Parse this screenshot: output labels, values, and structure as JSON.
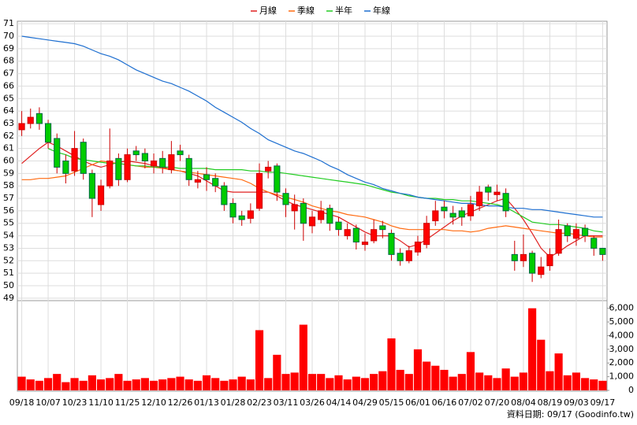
{
  "chart_data": {
    "type": "candlestick",
    "legend": "top",
    "grid": true,
    "up_color": "#ff0000",
    "down_color": "#00cc00",
    "volume_color": "#ff0000",
    "source": "資料日期: 09/17 (Goodinfo.tw)",
    "xlim": [
      -0.5,
      66.5
    ],
    "xticks": [
      {
        "value": 0,
        "label": "09/18"
      },
      {
        "value": 3,
        "label": "10/07"
      },
      {
        "value": 6,
        "label": "10/23"
      },
      {
        "value": 9,
        "label": "11/10"
      },
      {
        "value": 12,
        "label": "11/25"
      },
      {
        "value": 15,
        "label": "12/10"
      },
      {
        "value": 18,
        "label": "12/26"
      },
      {
        "value": 21,
        "label": "01/13"
      },
      {
        "value": 24,
        "label": "01/28"
      },
      {
        "value": 27,
        "label": "02/23"
      },
      {
        "value": 30,
        "label": "03/11"
      },
      {
        "value": 33,
        "label": "03/26"
      },
      {
        "value": 36,
        "label": "04/14"
      },
      {
        "value": 39,
        "label": "04/29"
      },
      {
        "value": 42,
        "label": "05/15"
      },
      {
        "value": 45,
        "label": "06/01"
      },
      {
        "value": 48,
        "label": "06/16"
      },
      {
        "value": 51,
        "label": "07/02"
      },
      {
        "value": 54,
        "label": "07/20"
      },
      {
        "value": 57,
        "label": "08/04"
      },
      {
        "value": 60,
        "label": "08/19"
      },
      {
        "value": 63,
        "label": "09/03"
      },
      {
        "value": 66,
        "label": "09/17"
      }
    ],
    "ylim": [
      48.8,
      71.2
    ],
    "yticks": [
      49,
      50,
      51,
      52,
      53,
      54,
      55,
      56,
      57,
      58,
      59,
      60,
      61,
      62,
      63,
      64,
      65,
      66,
      67,
      68,
      69,
      70,
      71
    ],
    "y2lim": [
      0,
      6500
    ],
    "y2ticks": [
      0,
      {
        "value": 1000,
        "label": "1,000"
      },
      {
        "value": 2000,
        "label": "2,000"
      },
      {
        "value": 3000,
        "label": "3,000"
      },
      {
        "value": 4000,
        "label": "4,000"
      },
      {
        "value": 5000,
        "label": "5,000"
      },
      {
        "value": 6000,
        "label": "6,000"
      }
    ],
    "open": [
      62.5,
      63,
      63.8,
      63,
      61.8,
      60,
      59.2,
      61.5,
      59,
      56.5,
      58,
      60.2,
      58.5,
      60.8,
      60.6,
      59.6,
      60.2,
      59.3,
      60.8,
      60.2,
      58.3,
      58.9,
      58.6,
      58,
      56.6,
      55.6,
      55.4,
      56.2,
      59.2,
      59.6,
      57.4,
      56,
      56.6,
      54.8,
      55.3,
      56.2,
      55.1,
      54,
      54.6,
      53.3,
      53.6,
      54.8,
      54.2,
      52.6,
      52,
      52.7,
      53.3,
      55.2,
      56.3,
      55.8,
      56,
      55.6,
      56.4,
      57.9,
      57.3,
      57.4,
      52.5,
      52,
      52.6,
      50.9,
      51.6,
      52.6,
      54.8,
      53.8,
      54.6,
      53.8,
      53
    ],
    "high": [
      64,
      64.2,
      64.3,
      63.3,
      62.2,
      60.5,
      62.4,
      61.8,
      59.3,
      58.5,
      62.6,
      60.6,
      61,
      61.2,
      61,
      60.6,
      60.8,
      61.6,
      61.3,
      60.5,
      59.2,
      59.5,
      59,
      58.3,
      57,
      56,
      56.6,
      59.8,
      60,
      59.8,
      57.8,
      57.3,
      57,
      56,
      56.8,
      56.5,
      55.5,
      55,
      54.9,
      54.2,
      55.3,
      55.2,
      54.5,
      53,
      53.2,
      54,
      55.6,
      56.8,
      56.8,
      56.4,
      56.3,
      57.2,
      58,
      58.1,
      58.1,
      57.8,
      53.6,
      54.1,
      52.8,
      52.3,
      53,
      55.3,
      55,
      55,
      54.9,
      54,
      53
    ],
    "low": [
      62,
      62.6,
      62.5,
      61,
      59,
      58.2,
      58.8,
      58.5,
      55.5,
      56,
      57.8,
      58,
      58.3,
      60,
      59.4,
      59,
      59,
      59,
      60,
      58,
      57.8,
      57.6,
      57.5,
      56,
      55,
      54.8,
      55,
      56,
      58.6,
      56.8,
      55.5,
      54.5,
      53.6,
      54.2,
      55,
      54.4,
      54,
      53.7,
      52.9,
      52.8,
      53.4,
      53.8,
      52,
      51.6,
      51.8,
      52.4,
      53,
      54.8,
      55.4,
      54.9,
      54.8,
      55.2,
      56,
      56.8,
      56.8,
      55.5,
      51.2,
      51.5,
      50.3,
      50.6,
      51.2,
      52.4,
      53.5,
      53.2,
      53.5,
      52.4,
      52
    ],
    "close": [
      63,
      63.5,
      63,
      61.5,
      59.5,
      59,
      61,
      59,
      57,
      58,
      60,
      58.5,
      60.5,
      60.5,
      60,
      60,
      59.5,
      60.5,
      60.5,
      58.5,
      58.5,
      58.5,
      58,
      56.5,
      55.5,
      55.3,
      56,
      59,
      59.5,
      57.5,
      56.5,
      56.5,
      55,
      55.5,
      56,
      55,
      54.5,
      54.5,
      53.5,
      53.5,
      54.5,
      54.5,
      52.5,
      52,
      52.8,
      53.5,
      55,
      56,
      56,
      55.5,
      55.5,
      56.5,
      57.5,
      57.5,
      57.5,
      56,
      52,
      52.5,
      51,
      51.5,
      52.5,
      54.5,
      54,
      54.5,
      54,
      53,
      52.5
    ],
    "volume": [
      1000,
      800,
      700,
      900,
      1200,
      600,
      900,
      700,
      1100,
      800,
      900,
      1200,
      700,
      800,
      900,
      700,
      800,
      900,
      1000,
      800,
      700,
      1100,
      900,
      700,
      800,
      1000,
      800,
      4400,
      900,
      2600,
      1200,
      1300,
      4800,
      1200,
      1200,
      900,
      1100,
      800,
      1000,
      900,
      1200,
      1400,
      3800,
      1500,
      1200,
      3000,
      2100,
      1800,
      1500,
      1000,
      1200,
      2800,
      1300,
      1100,
      900,
      1600,
      1000,
      1300,
      6000,
      3700,
      1400,
      2700,
      1100,
      1300,
      900,
      800,
      700
    ],
    "series": [
      {
        "name": "月線",
        "color": "#e02020",
        "values": [
          59.8,
          60.4,
          61,
          61.5,
          61.2,
          60.8,
          60.4,
          60,
          59.7,
          59.5,
          59.7,
          59.9,
          60,
          59.9,
          59.8,
          59.6,
          59.5,
          59.3,
          59.2,
          59,
          58.8,
          58.4,
          58,
          57.6,
          57.5,
          57.5,
          57.5,
          57.5,
          57.5,
          57.2,
          56.8,
          56.5,
          56.3,
          56.1,
          55.9,
          55.7,
          55.5,
          55.1,
          54.7,
          54.3,
          54,
          54,
          54,
          53.6,
          53.1,
          53.3,
          53.7,
          54.2,
          54.7,
          55.2,
          55.6,
          55.9,
          56.2,
          56.5,
          56.8,
          57,
          56.2,
          55.3,
          54.2,
          53,
          52.3,
          52.7,
          53.2,
          53.6,
          54,
          54,
          54
        ]
      },
      {
        "name": "季線",
        "color": "#ff6a10",
        "values": [
          58.5,
          58.5,
          58.6,
          58.6,
          58.7,
          58.8,
          59.1,
          59.4,
          59.7,
          60,
          59.9,
          59.8,
          59.7,
          59.6,
          59.5,
          59.5,
          59.4,
          59.3,
          59.2,
          59.1,
          59,
          58.9,
          58.8,
          58.7,
          58.6,
          58.5,
          58.2,
          57.8,
          57.5,
          57.3,
          57.1,
          56.9,
          56.7,
          56.4,
          56.2,
          56,
          55.9,
          55.7,
          55.6,
          55.5,
          55.3,
          55.1,
          54.8,
          54.6,
          54.5,
          54.5,
          54.5,
          54.5,
          54.5,
          54.4,
          54.4,
          54.3,
          54.4,
          54.6,
          54.7,
          54.8,
          54.7,
          54.6,
          54.5,
          54.4,
          54.3,
          54.2,
          54.2,
          54.1,
          54,
          53.9,
          53.9
        ]
      },
      {
        "name": "半年",
        "color": "#22cc22",
        "values": [
          null,
          null,
          null,
          61,
          60.7,
          60.5,
          60.2,
          60.1,
          60,
          59.9,
          59.8,
          59.8,
          59.7,
          59.6,
          59.6,
          59.5,
          59.5,
          59.5,
          59.4,
          59.4,
          59.4,
          59.4,
          59.3,
          59.3,
          59.3,
          59.3,
          59.2,
          59.2,
          59.1,
          59.1,
          59,
          58.9,
          58.8,
          58.7,
          58.6,
          58.5,
          58.4,
          58.3,
          58.2,
          58.1,
          57.9,
          57.7,
          57.5,
          57.4,
          57.2,
          57.1,
          57,
          57,
          56.9,
          56.9,
          56.8,
          56.8,
          56.7,
          56.6,
          56.5,
          56.3,
          55.9,
          55.5,
          55.1,
          55,
          54.9,
          54.9,
          54.8,
          54.7,
          54.6,
          54.4,
          54.3
        ]
      },
      {
        "name": "年線",
        "color": "#1e6fd0",
        "values": [
          70,
          69.9,
          69.8,
          69.7,
          69.6,
          69.5,
          69.4,
          69.2,
          68.9,
          68.6,
          68.4,
          68.1,
          67.7,
          67.3,
          67,
          66.7,
          66.4,
          66.2,
          65.9,
          65.6,
          65.2,
          64.8,
          64.3,
          63.9,
          63.5,
          63.1,
          62.6,
          62.2,
          61.7,
          61.4,
          61.1,
          60.8,
          60.6,
          60.3,
          60,
          59.6,
          59.3,
          58.9,
          58.6,
          58.3,
          58.1,
          57.8,
          57.6,
          57.4,
          57.3,
          57.1,
          57,
          56.9,
          56.8,
          56.7,
          56.6,
          56.6,
          56.5,
          56.4,
          56.4,
          56.3,
          56.2,
          56.2,
          56.1,
          56.1,
          56,
          55.9,
          55.8,
          55.7,
          55.6,
          55.5,
          55.5
        ]
      }
    ]
  }
}
